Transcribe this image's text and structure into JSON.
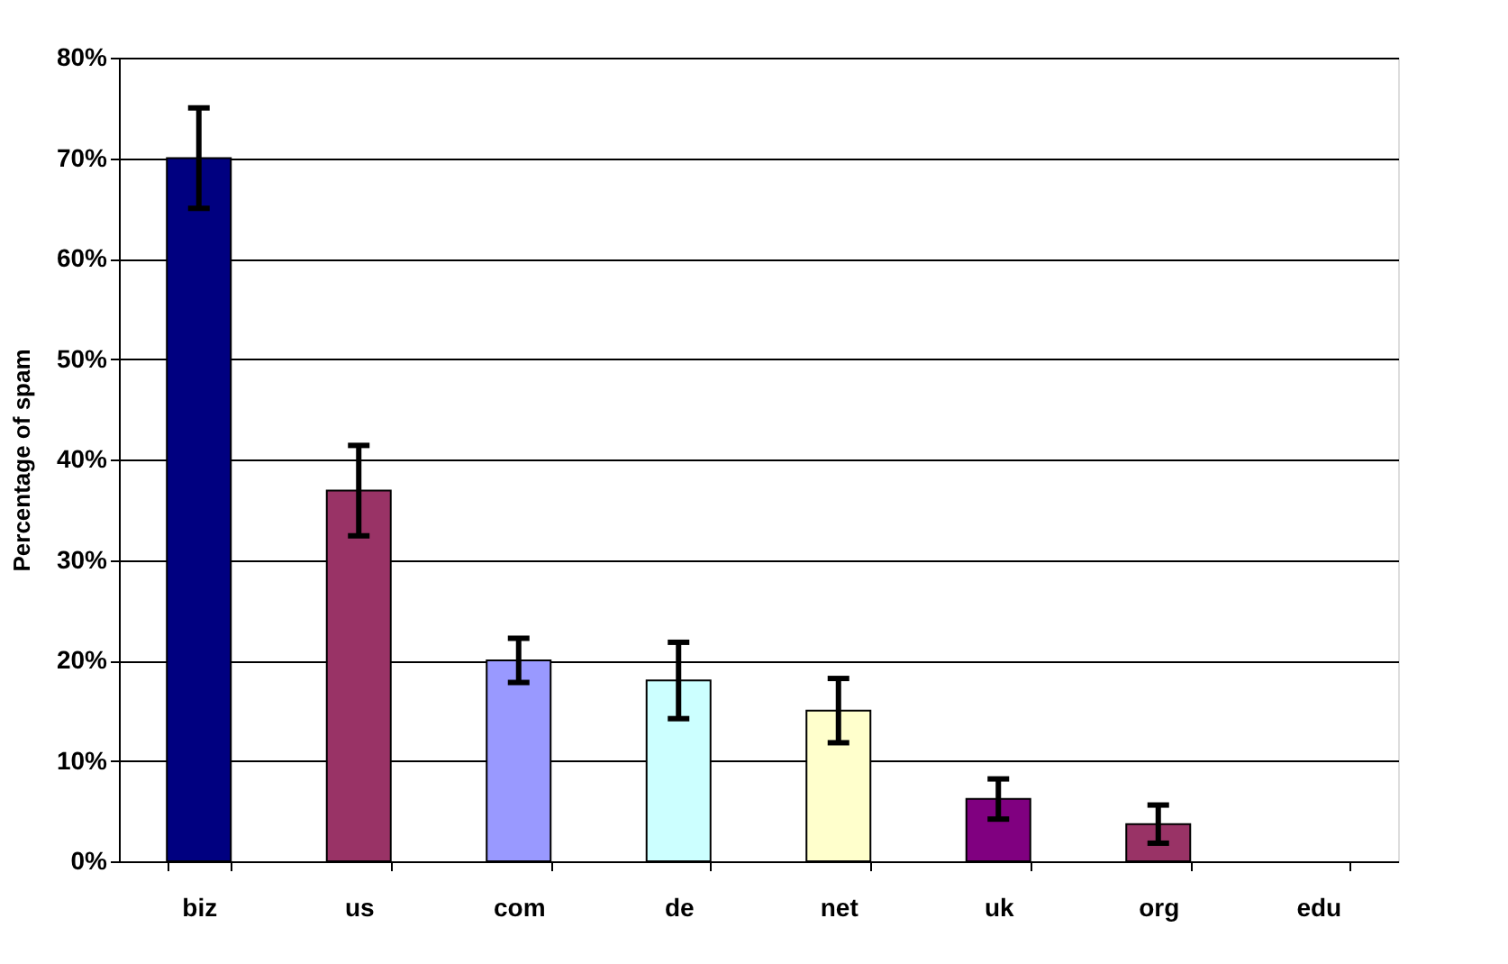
{
  "chart_data": {
    "type": "bar",
    "ylabel": "Percentage of spam",
    "categories": [
      "biz",
      "us",
      "com",
      "de",
      "net",
      "uk",
      "org",
      "edu"
    ],
    "values": [
      70,
      36.9,
      20,
      18,
      15,
      6.2,
      3.7,
      0
    ],
    "colors": [
      "#000080",
      "#993366",
      "#9999ff",
      "#ccffff",
      "#ffffcc",
      "#800080",
      "#993366",
      "#993366"
    ],
    "errors": [
      5,
      4.5,
      2.2,
      3.8,
      3.2,
      2,
      1.9,
      null
    ],
    "ylim": [
      0,
      80
    ],
    "yticks": [
      {
        "value": 0,
        "label": "0%"
      },
      {
        "value": 10,
        "label": "10%"
      },
      {
        "value": 20,
        "label": "20%"
      },
      {
        "value": 30,
        "label": "30%"
      },
      {
        "value": 40,
        "label": "40%"
      },
      {
        "value": 50,
        "label": "50%"
      },
      {
        "value": 60,
        "label": "60%"
      },
      {
        "value": 70,
        "label": "70%"
      },
      {
        "value": 80,
        "label": "80%"
      }
    ],
    "grid": "y"
  }
}
